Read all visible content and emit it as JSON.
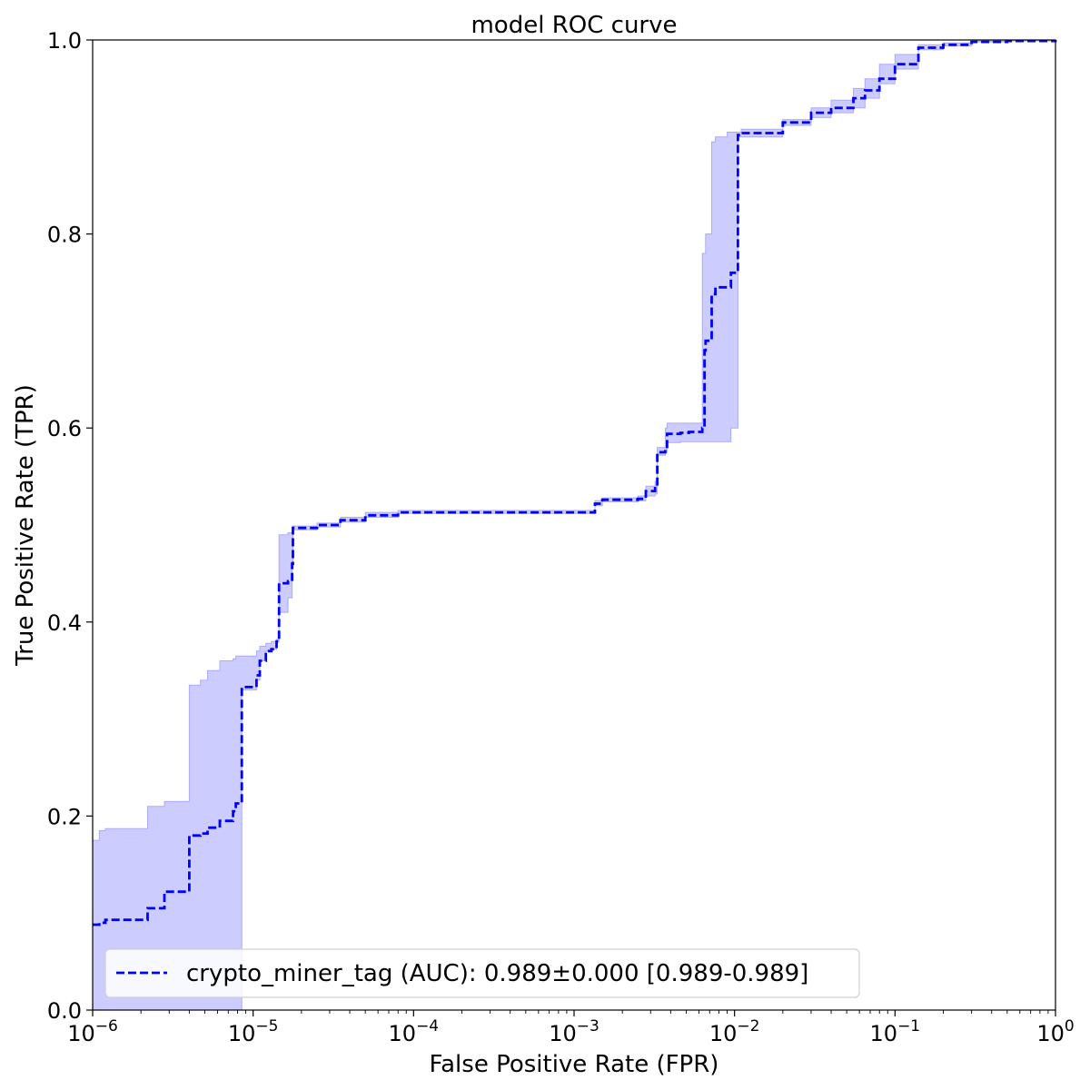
{
  "chart_data": {
    "type": "line",
    "title": "model ROC curve",
    "xlabel": "False Positive Rate (FPR)",
    "ylabel": "True Positive Rate (TPR)",
    "xscale": "log",
    "xlim": [
      1e-06,
      1
    ],
    "ylim": [
      0,
      1
    ],
    "grid": false,
    "legend_position": "lower-left",
    "x_tick_labels": [
      {
        "base": "10",
        "exp": "−6"
      },
      {
        "base": "10",
        "exp": "−5"
      },
      {
        "base": "10",
        "exp": "−4"
      },
      {
        "base": "10",
        "exp": "−3"
      },
      {
        "base": "10",
        "exp": "−2"
      },
      {
        "base": "10",
        "exp": "−1"
      },
      {
        "base": "10",
        "exp": "0"
      }
    ],
    "y_tick_labels": [
      "0.0",
      "0.2",
      "0.4",
      "0.6",
      "0.8",
      "1.0"
    ],
    "series": [
      {
        "name": "crypto_miner_tag (AUC): 0.989±0.000 [0.989-0.989]",
        "color": "#0000ff",
        "band_color": "#ccccff",
        "x": [
          1e-06,
          1.1e-06,
          1.2e-06,
          2.2e-06,
          2.2e-06,
          2.8e-06,
          2.8e-06,
          4e-06,
          4e-06,
          4.7e-06,
          5.2e-06,
          6.2e-06,
          7.5e-06,
          7.8e-06,
          8.5e-06,
          8.5e-06,
          1.05e-05,
          1.1e-05,
          1.2e-05,
          1.3e-05,
          1.4e-05,
          1.45e-05,
          1.45e-05,
          1.65e-05,
          1.75e-05,
          1.77e-05,
          1.77e-05,
          2.5e-05,
          3.5e-05,
          5e-05,
          8e-05,
          0.0002,
          0.0006,
          0.0013,
          0.00135,
          0.0015,
          0.0025,
          0.0028,
          0.0032,
          0.0033,
          0.0037,
          0.0038,
          0.0046,
          0.0052,
          0.0063,
          0.0065,
          0.0066,
          0.0072,
          0.0076,
          0.009,
          0.0095,
          0.0105,
          0.011,
          0.02,
          0.03,
          0.04,
          0.055,
          0.065,
          0.08,
          0.1,
          0.14,
          0.2,
          0.3,
          0.5,
          1
        ],
        "y": [
          0.088,
          0.09,
          0.093,
          0.095,
          0.105,
          0.107,
          0.122,
          0.122,
          0.18,
          0.182,
          0.188,
          0.195,
          0.205,
          0.213,
          0.215,
          0.333,
          0.345,
          0.36,
          0.37,
          0.372,
          0.38,
          0.385,
          0.44,
          0.442,
          0.46,
          0.48,
          0.497,
          0.5,
          0.505,
          0.51,
          0.513,
          0.513,
          0.513,
          0.513,
          0.522,
          0.526,
          0.527,
          0.535,
          0.538,
          0.575,
          0.578,
          0.594,
          0.595,
          0.596,
          0.6,
          0.68,
          0.69,
          0.738,
          0.745,
          0.745,
          0.76,
          0.902,
          0.904,
          0.915,
          0.925,
          0.93,
          0.94,
          0.948,
          0.96,
          0.975,
          0.992,
          0.995,
          0.998,
          0.999,
          1.0
        ],
        "y_lower": [
          0.0,
          0.0,
          0.0,
          0.0,
          0.0,
          0.0,
          0.0,
          0.0,
          0.0,
          0.0,
          0.0,
          0.0,
          0.0,
          0.0,
          0.0,
          0.33,
          0.34,
          0.36,
          0.37,
          0.372,
          0.38,
          0.385,
          0.41,
          0.425,
          0.46,
          0.48,
          0.495,
          0.498,
          0.503,
          0.508,
          0.512,
          0.512,
          0.512,
          0.512,
          0.52,
          0.524,
          0.525,
          0.53,
          0.532,
          0.572,
          0.575,
          0.585,
          0.586,
          0.586,
          0.586,
          0.586,
          0.586,
          0.586,
          0.586,
          0.586,
          0.6,
          0.9,
          0.9,
          0.912,
          0.92,
          0.925,
          0.93,
          0.94,
          0.955,
          0.97,
          0.99,
          0.994,
          0.998,
          0.999,
          1.0
        ],
        "y_upper": [
          0.175,
          0.185,
          0.187,
          0.19,
          0.21,
          0.215,
          0.215,
          0.335,
          0.335,
          0.34,
          0.35,
          0.36,
          0.362,
          0.365,
          0.365,
          0.365,
          0.37,
          0.375,
          0.378,
          0.38,
          0.382,
          0.385,
          0.49,
          0.492,
          0.495,
          0.497,
          0.499,
          0.502,
          0.508,
          0.513,
          0.515,
          0.515,
          0.515,
          0.515,
          0.525,
          0.528,
          0.53,
          0.54,
          0.545,
          0.58,
          0.6,
          0.605,
          0.605,
          0.605,
          0.78,
          0.78,
          0.8,
          0.895,
          0.9,
          0.905,
          0.905,
          0.905,
          0.908,
          0.918,
          0.93,
          0.938,
          0.95,
          0.96,
          0.975,
          0.985,
          0.995,
          0.997,
          0.999,
          1.0,
          1.0
        ]
      }
    ]
  }
}
